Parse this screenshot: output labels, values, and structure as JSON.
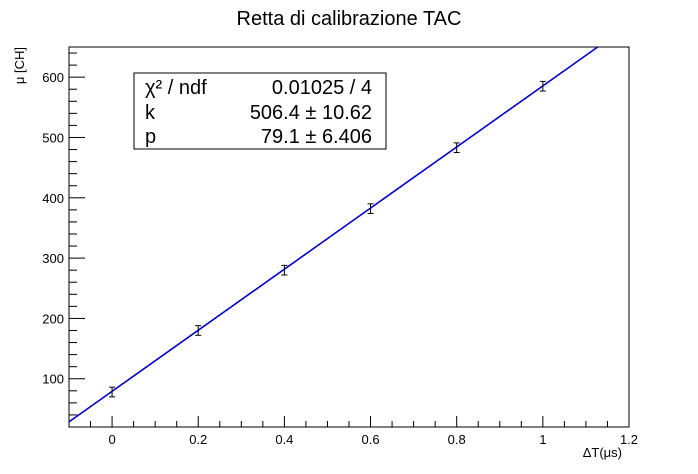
{
  "chart_data": {
    "type": "scatter",
    "title": "Retta di calibrazione TAC",
    "xlabel": "ΔT(μs)",
    "ylabel": "μ [CH]",
    "xlim": [
      -0.1,
      1.2
    ],
    "ylim": [
      20,
      650
    ],
    "grid": false,
    "x_ticks": [
      0,
      0.2,
      0.4,
      0.6,
      0.8,
      1,
      1.2
    ],
    "x_tick_labels": [
      "0",
      "0.2",
      "0.4",
      "0.6",
      "0.8",
      "1",
      "1.2"
    ],
    "y_ticks": [
      100,
      200,
      300,
      400,
      500,
      600
    ],
    "y_tick_labels": [
      "100",
      "200",
      "300",
      "400",
      "500",
      "600"
    ],
    "series": [
      {
        "type": "errorbar",
        "color": "#000000",
        "x": [
          0,
          0.2,
          0.4,
          0.6,
          0.8,
          1.0
        ],
        "y": [
          78,
          180,
          280,
          382,
          483,
          585
        ],
        "yerr": [
          8,
          8,
          8,
          8,
          8,
          8
        ]
      },
      {
        "type": "fit-line",
        "color": "#0000cc",
        "slope": 506.4,
        "intercept": 79.1
      }
    ],
    "stats_box": {
      "rows": [
        {
          "label": "χ² / ndf",
          "value": "0.01025 / 4"
        },
        {
          "label": "k",
          "value": "506.4 ± 10.62"
        },
        {
          "label": "p",
          "value": "79.1 ± 6.406"
        }
      ]
    }
  }
}
